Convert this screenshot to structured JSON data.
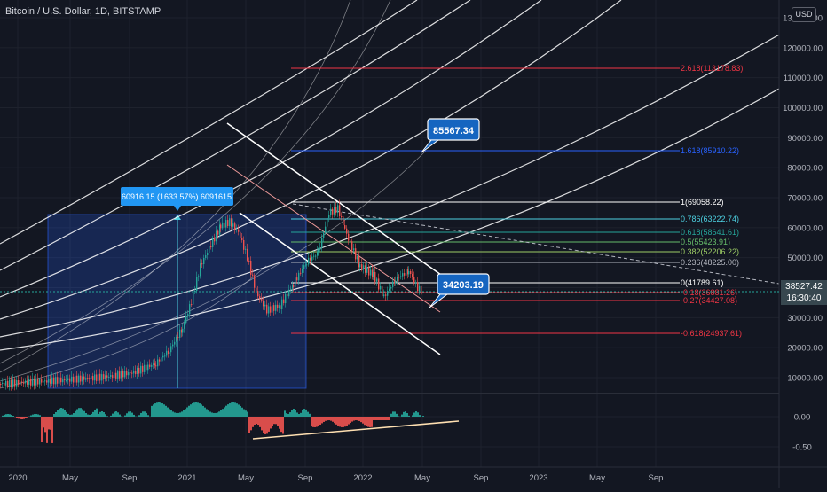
{
  "header": {
    "title": "Bitcoin / U.S. Dollar, 1D, BITSTAMP",
    "currency": "USD"
  },
  "price_scale": {
    "ticks": [
      "130000.00",
      "120000.00",
      "110000.00",
      "100000.00",
      "90000.00",
      "80000.00",
      "70000.00",
      "60000.00",
      "50000.00",
      "40000.00",
      "30000.00",
      "20000.00",
      "10000.00"
    ],
    "last_price": "38527.42",
    "countdown": "16:30:40"
  },
  "indicator_scale": {
    "ticks": [
      "0.00",
      "-0.50"
    ]
  },
  "time_axis": {
    "labels": [
      "2020",
      "May",
      "Sep",
      "2021",
      "May",
      "Sep",
      "2022",
      "May",
      "Sep",
      "2023",
      "May",
      "Sep"
    ]
  },
  "fib_levels": [
    {
      "label": "2.618(113178.83)",
      "color": "#f23645"
    },
    {
      "label": "1.618(85910.22)",
      "color": "#2962ff"
    },
    {
      "label": "1(69058.22)",
      "color": "#ffffff"
    },
    {
      "label": "0.786(63222.74)",
      "color": "#4dd0e1"
    },
    {
      "label": "0.618(58641.61)",
      "color": "#26a69a"
    },
    {
      "label": "0.5(55423.91)",
      "color": "#66bb6a"
    },
    {
      "label": "0.382(52206.22)",
      "color": "#9ccc65"
    },
    {
      "label": "0.236(48225.00)",
      "color": "#b2b5be"
    },
    {
      "label": "0(41789.61)",
      "color": "#ffffff"
    },
    {
      "label": "-0.18(36881.26)",
      "color": "#f23645"
    },
    {
      "label": "-0.27(34427.08)",
      "color": "#f23645"
    },
    {
      "label": "-0.618(24937.61)",
      "color": "#f23645"
    }
  ],
  "annotations": {
    "measure_label": "60916.15 (1633.57%) 6091615",
    "callout_top": "85567.34",
    "callout_bottom": "34203.19"
  },
  "colors": {
    "background": "#131722",
    "candle_up": "#26a69a",
    "candle_down": "#ef5350",
    "measure_box": "#2962ff",
    "trend_line": "#ffe0b2"
  }
}
